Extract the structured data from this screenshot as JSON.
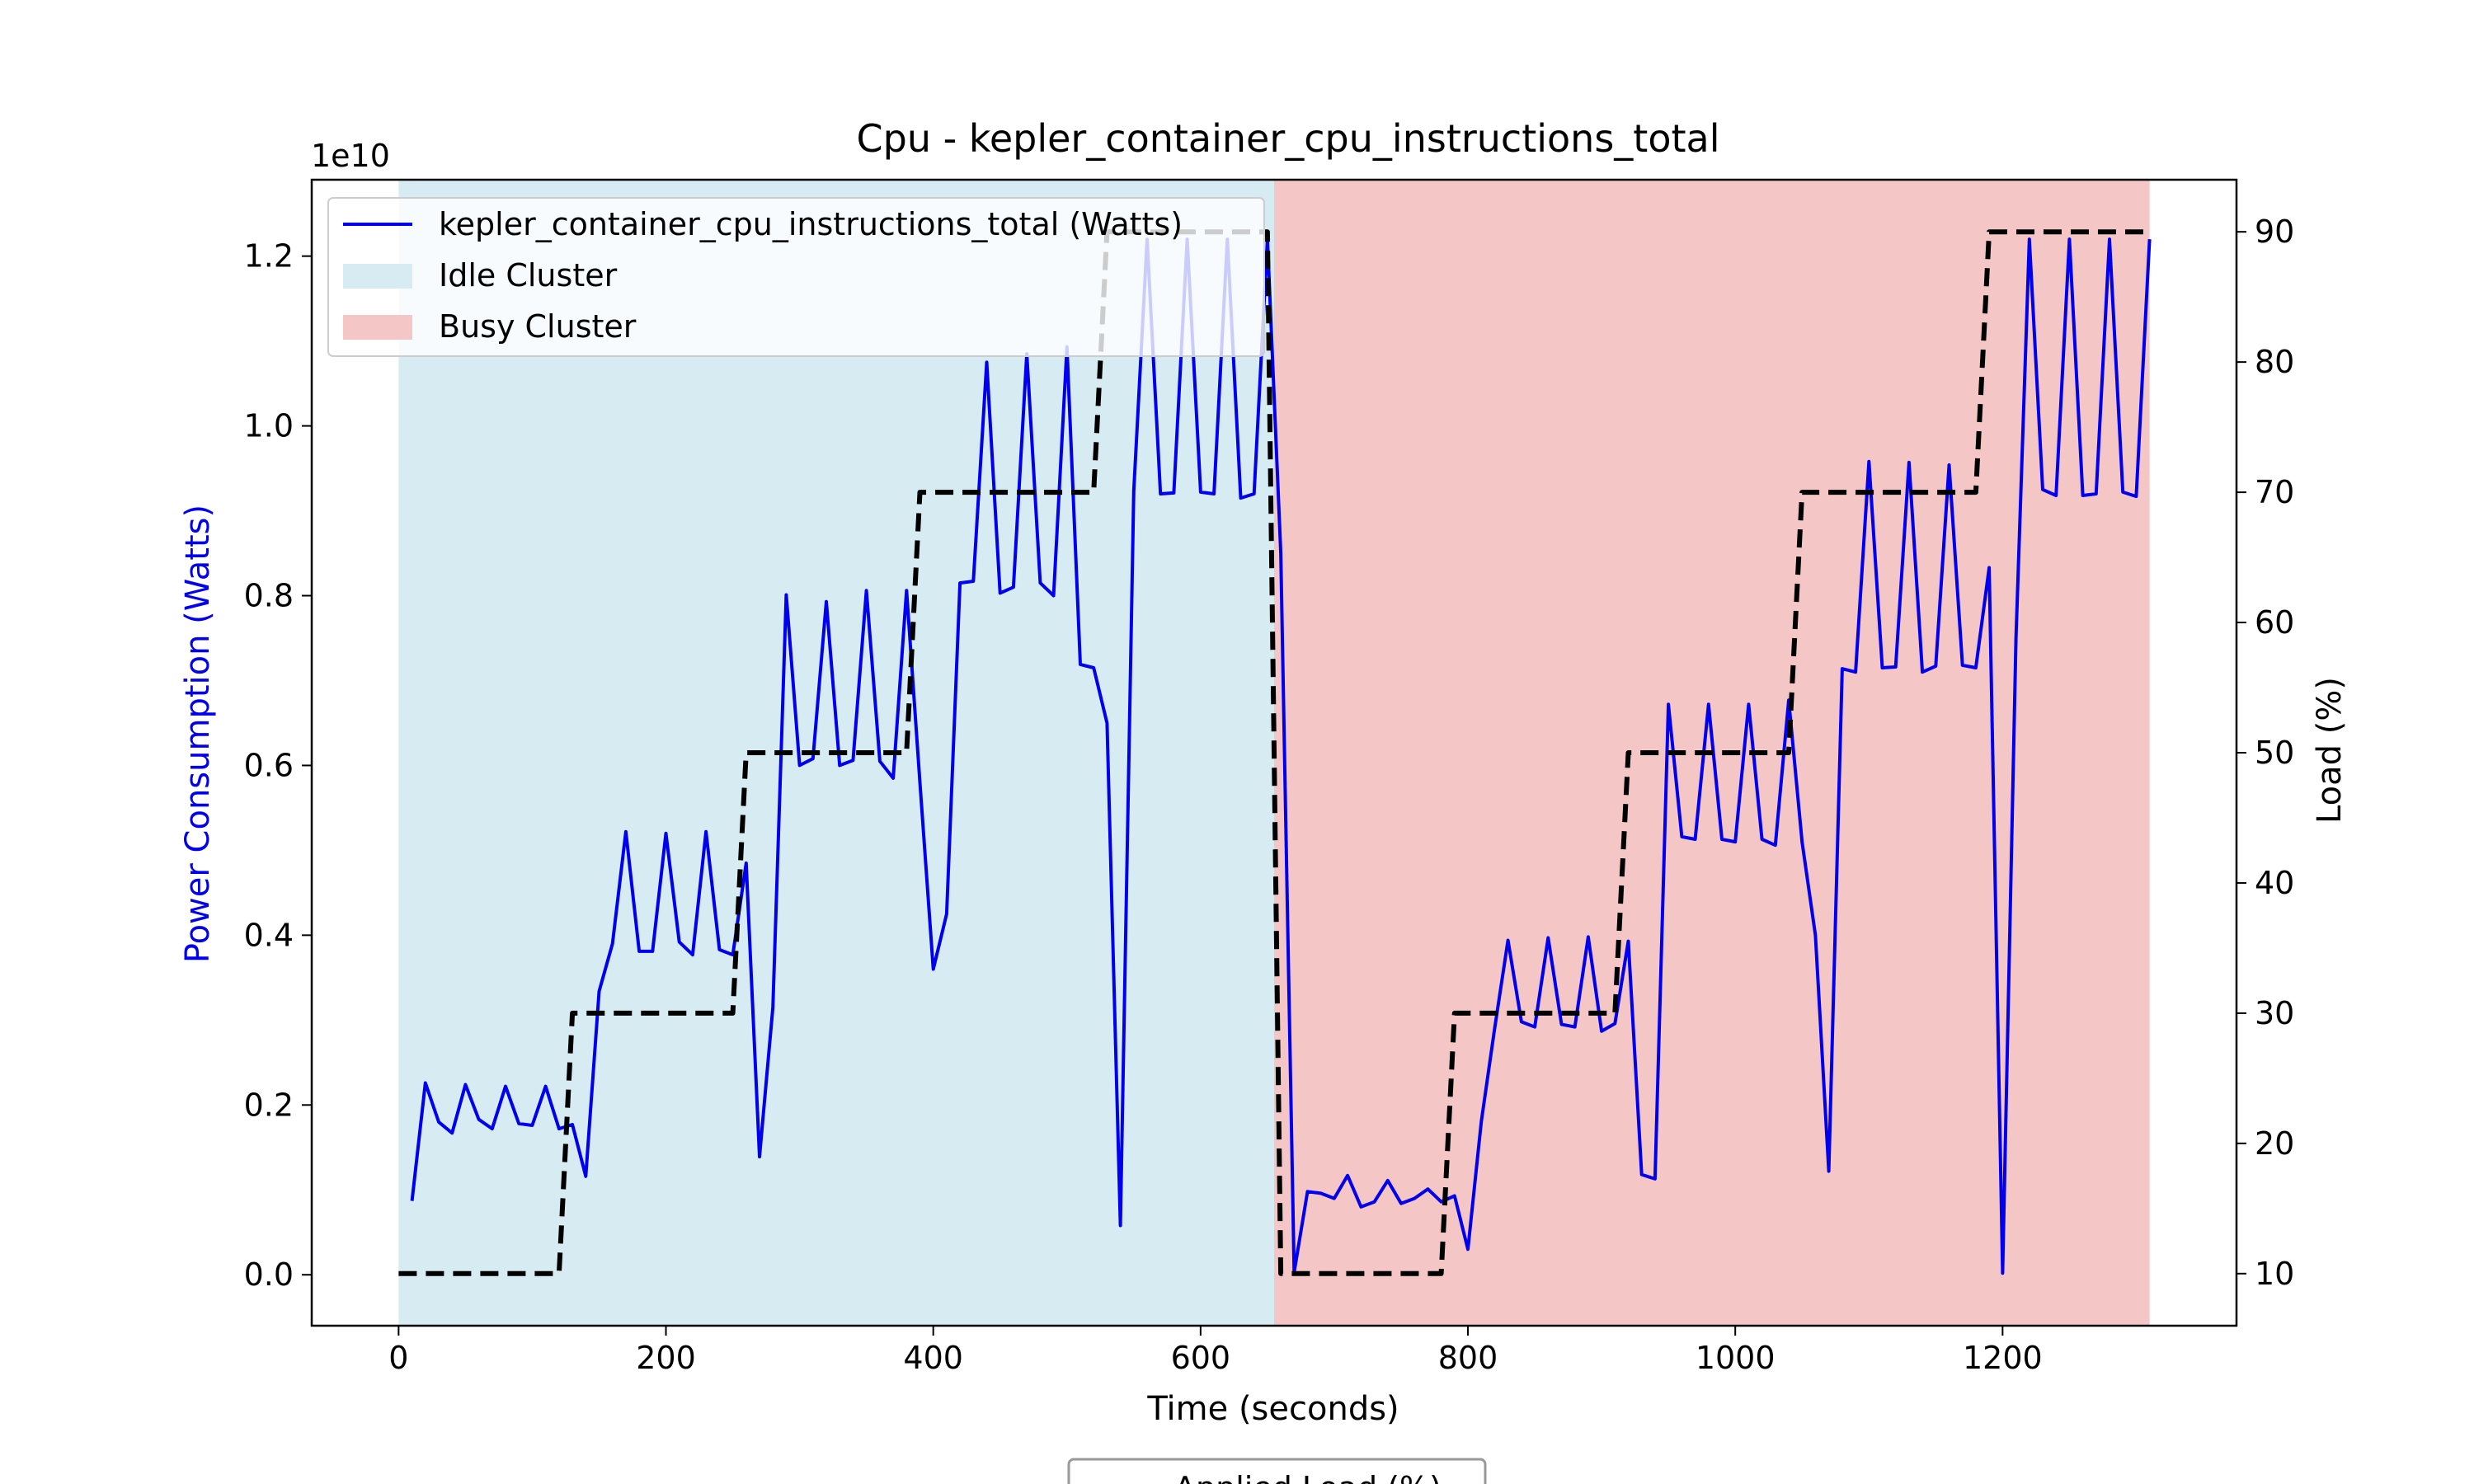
{
  "chart_data": {
    "type": "line",
    "title": "Cpu - kepler_container_cpu_instructions_total",
    "xlabel": "Time (seconds)",
    "ylabel_left": "Power Consumption (Watts)",
    "ylabel_right": "Load (%)",
    "y_offset_label": "1e10",
    "xlim": [
      -65,
      1375
    ],
    "ylim_left": [
      -0.06,
      1.29
    ],
    "ylim_right": [
      6.0,
      94.0
    ],
    "x_ticks": [
      0,
      200,
      400,
      600,
      800,
      1000,
      1200
    ],
    "x_tick_labels": [
      "0",
      "200",
      "400",
      "600",
      "800",
      "1000",
      "1200"
    ],
    "y_ticks_left": [
      0.0,
      0.2,
      0.4,
      0.6,
      0.8,
      1.0,
      1.2
    ],
    "y_tick_labels_left": [
      "0.0",
      "0.2",
      "0.4",
      "0.6",
      "0.8",
      "1.0",
      "1.2"
    ],
    "y_ticks_right": [
      10,
      20,
      30,
      40,
      50,
      60,
      70,
      80,
      90
    ],
    "y_tick_labels_right": [
      "10",
      "20",
      "30",
      "40",
      "50",
      "60",
      "70",
      "80",
      "90"
    ],
    "regions": [
      {
        "name": "Idle Cluster",
        "x_start": 0,
        "x_end": 655,
        "color": "#d7ecf2"
      },
      {
        "name": "Busy Cluster",
        "x_start": 655,
        "x_end": 1310,
        "color": "#f5c6c6"
      }
    ],
    "series": [
      {
        "name": "kepler_container_cpu_instructions_total (Watts)",
        "axis": "left",
        "color": "#0000ee",
        "style": "solid",
        "x": [
          10,
          20,
          30,
          40,
          50,
          60,
          70,
          80,
          90,
          100,
          110,
          120,
          130,
          140,
          150,
          160,
          170,
          180,
          190,
          200,
          210,
          220,
          230,
          240,
          250,
          260,
          270,
          280,
          290,
          300,
          310,
          320,
          330,
          340,
          350,
          360,
          370,
          380,
          390,
          400,
          410,
          420,
          430,
          440,
          450,
          460,
          470,
          480,
          490,
          500,
          510,
          520,
          530,
          540,
          550,
          560,
          570,
          580,
          590,
          600,
          610,
          620,
          630,
          640,
          650,
          660,
          670,
          680,
          690,
          700,
          710,
          720,
          730,
          740,
          750,
          760,
          770,
          780,
          790,
          800,
          810,
          820,
          830,
          840,
          850,
          860,
          870,
          880,
          890,
          900,
          910,
          920,
          930,
          940,
          950,
          960,
          970,
          980,
          990,
          1000,
          1010,
          1020,
          1030,
          1040,
          1050,
          1060,
          1070,
          1080,
          1090,
          1100,
          1110,
          1120,
          1130,
          1140,
          1150,
          1160,
          1170,
          1180,
          1190,
          1200,
          1210,
          1220,
          1230,
          1240,
          1250,
          1260,
          1270,
          1280,
          1290,
          1300,
          1310
        ],
        "y": [
          0.087,
          0.226,
          0.18,
          0.167,
          0.224,
          0.183,
          0.172,
          0.222,
          0.178,
          0.176,
          0.222,
          0.172,
          0.177,
          0.116,
          0.334,
          0.39,
          0.522,
          0.381,
          0.381,
          0.52,
          0.392,
          0.377,
          0.522,
          0.383,
          0.377,
          0.485,
          0.139,
          0.315,
          0.801,
          0.6,
          0.608,
          0.793,
          0.6,
          0.606,
          0.806,
          0.605,
          0.585,
          0.806,
          0.58,
          0.36,
          0.425,
          0.815,
          0.817,
          1.075,
          0.803,
          0.81,
          1.085,
          0.815,
          0.8,
          1.093,
          0.719,
          0.715,
          0.65,
          0.058,
          0.923,
          1.22,
          0.92,
          0.921,
          1.22,
          0.922,
          0.92,
          1.22,
          0.915,
          0.92,
          1.22,
          0.85,
          0.003,
          0.098,
          0.096,
          0.09,
          0.117,
          0.08,
          0.086,
          0.111,
          0.084,
          0.09,
          0.101,
          0.086,
          0.093,
          0.03,
          0.18,
          0.29,
          0.394,
          0.298,
          0.292,
          0.397,
          0.295,
          0.292,
          0.398,
          0.287,
          0.296,
          0.393,
          0.118,
          0.113,
          0.672,
          0.516,
          0.513,
          0.672,
          0.513,
          0.51,
          0.672,
          0.513,
          0.506,
          0.677,
          0.51,
          0.4,
          0.122,
          0.714,
          0.71,
          0.958,
          0.715,
          0.716,
          0.957,
          0.71,
          0.717,
          0.954,
          0.718,
          0.715,
          0.833,
          0.002,
          0.75,
          1.22,
          0.925,
          0.918,
          1.22,
          0.918,
          0.92,
          1.22,
          0.922,
          0.917,
          1.22
        ]
      },
      {
        "name": "Applied Load (%)",
        "axis": "right",
        "color": "#000000",
        "style": "dashed",
        "x": [
          0,
          120,
          130,
          250,
          260,
          380,
          390,
          520,
          530,
          650,
          660,
          780,
          790,
          910,
          920,
          1040,
          1050,
          1180,
          1190,
          1310
        ],
        "y": [
          10,
          10,
          30,
          30,
          50,
          50,
          70,
          70,
          90,
          90,
          10,
          10,
          30,
          30,
          50,
          50,
          70,
          70,
          90,
          90
        ]
      }
    ],
    "legend_main": {
      "placement": "upper left",
      "entries": [
        {
          "label": "kepler_container_cpu_instructions_total (Watts)",
          "kind": "line",
          "color": "#0000ee"
        },
        {
          "label": "Idle Cluster",
          "kind": "patch",
          "color": "#d7ecf2"
        },
        {
          "label": "Busy Cluster",
          "kind": "patch",
          "color": "#f5c6c6"
        }
      ]
    },
    "legend_secondary": {
      "placement": "below plot",
      "entries": [
        {
          "label": "Applied Load (%)",
          "kind": "dashed-line",
          "color": "#000000"
        }
      ]
    },
    "grid": false
  }
}
